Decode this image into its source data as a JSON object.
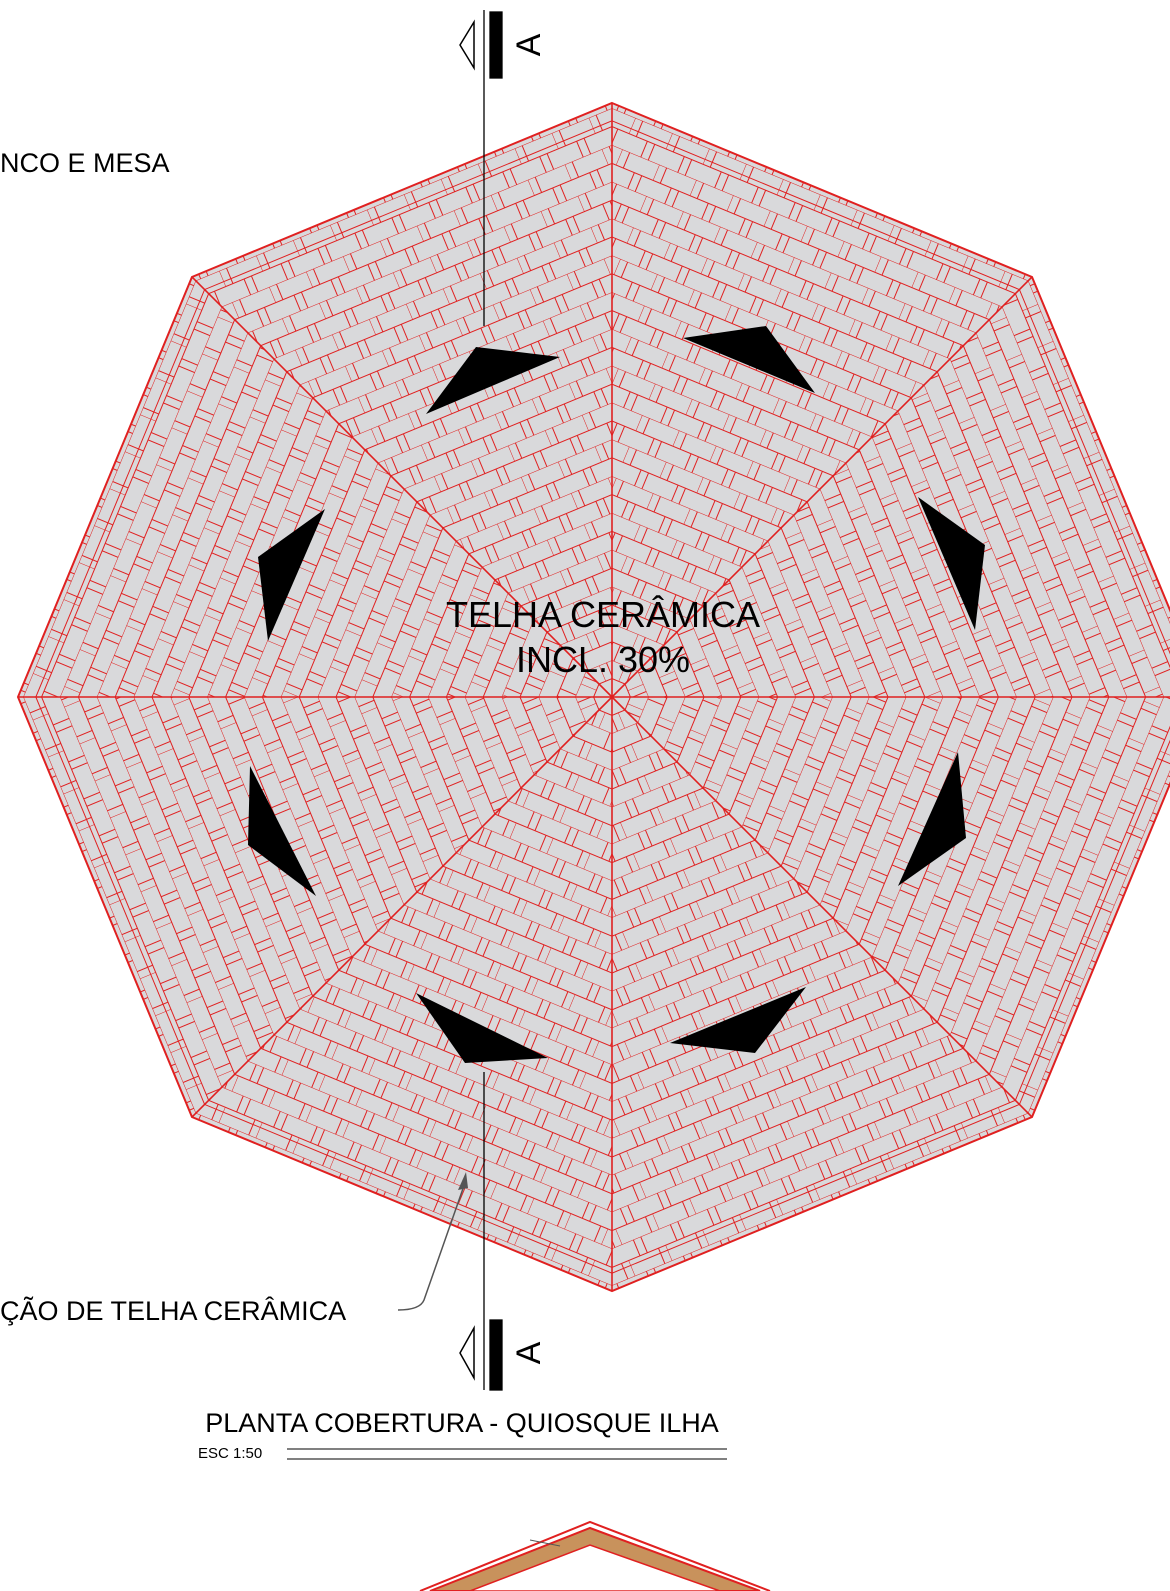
{
  "notes": {
    "top_left": "NCO E MESA",
    "leader": "ÇÃO DE TELHA CERÂMICA"
  },
  "roof": {
    "material": "TELHA CERÂMICA",
    "slope": "INCL. 30%"
  },
  "section": {
    "top": "A",
    "bottom": "A"
  },
  "drawing": {
    "title": "PLANTA COBERTURA - QUIOSQUE ILHA",
    "scale": "ESC 1:50"
  }
}
